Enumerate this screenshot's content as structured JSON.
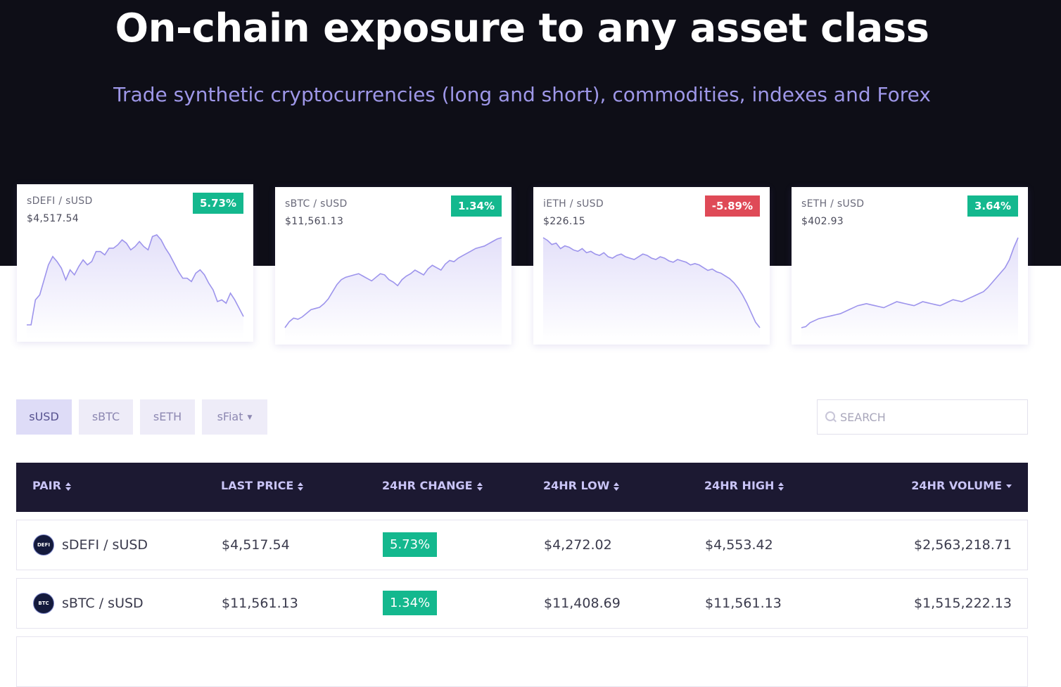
{
  "hero": {
    "title": "On-chain exposure to any asset class",
    "subtitle": "Trade synthetic cryptocurrencies (long and short), commodities, indexes and Forex"
  },
  "colors": {
    "hero_bg": "#0e0e17",
    "accent": "#9e97e8",
    "positive": "#14b88e",
    "negative": "#df4a57",
    "table_header_bg": "#1c1932"
  },
  "cards": [
    {
      "pair": "sDEFI / sUSD",
      "price": "$4,517.54",
      "change": "5.73%",
      "trend": "positive",
      "series": [
        0,
        0,
        15,
        18,
        27,
        36,
        41,
        38,
        34,
        27,
        33,
        30,
        35,
        39,
        36,
        38,
        44,
        44,
        42,
        46,
        46,
        48,
        51,
        49,
        45,
        47,
        50,
        47,
        45,
        53,
        54,
        51,
        46,
        42,
        37,
        32,
        28,
        28,
        26,
        31,
        33,
        30,
        25,
        21,
        14,
        15,
        13,
        19,
        15,
        10,
        5
      ]
    },
    {
      "pair": "sBTC / sUSD",
      "price": "$11,561.13",
      "change": "1.34%",
      "trend": "positive",
      "series": [
        0,
        5,
        8,
        7,
        9,
        12,
        15,
        16,
        17,
        20,
        24,
        30,
        36,
        40,
        42,
        43,
        44,
        45,
        43,
        41,
        39,
        42,
        45,
        44,
        40,
        38,
        35,
        40,
        43,
        45,
        48,
        46,
        44,
        49,
        52,
        50,
        48,
        53,
        56,
        55,
        58,
        60,
        62,
        64,
        66,
        67,
        68,
        70,
        72,
        74,
        75
      ]
    },
    {
      "pair": "iETH / sUSD",
      "price": "$226.15",
      "change": "-5.89%",
      "trend": "negative",
      "series": [
        70,
        68,
        65,
        66,
        62,
        64,
        63,
        61,
        60,
        62,
        59,
        60,
        58,
        57,
        59,
        56,
        55,
        57,
        58,
        56,
        55,
        54,
        56,
        58,
        57,
        55,
        54,
        56,
        55,
        53,
        52,
        54,
        53,
        52,
        50,
        51,
        50,
        48,
        46,
        47,
        45,
        44,
        42,
        40,
        37,
        33,
        28,
        22,
        15,
        8,
        4
      ]
    },
    {
      "pair": "sETH / sUSD",
      "price": "$402.93",
      "change": "3.64%",
      "trend": "positive",
      "series": [
        0,
        1,
        5,
        7,
        9,
        10,
        11,
        12,
        13,
        14,
        16,
        18,
        20,
        22,
        23,
        24,
        23,
        22,
        21,
        20,
        22,
        24,
        26,
        25,
        24,
        23,
        22,
        24,
        26,
        25,
        24,
        23,
        22,
        24,
        26,
        28,
        27,
        26,
        28,
        30,
        32,
        34,
        36,
        40,
        45,
        50,
        55,
        60,
        68,
        80,
        90
      ]
    }
  ],
  "filters": [
    {
      "label": "sUSD",
      "active": true
    },
    {
      "label": "sBTC",
      "active": false
    },
    {
      "label": "sETH",
      "active": false
    },
    {
      "label": "sFiat",
      "active": false,
      "dropdown": true
    }
  ],
  "search": {
    "placeholder": "SEARCH",
    "value": ""
  },
  "table": {
    "columns": [
      "PAIR",
      "LAST PRICE",
      "24HR CHANGE",
      "24HR LOW",
      "24HR HIGH",
      "24HR VOLUME"
    ],
    "sort_column": "24HR VOLUME",
    "rows": [
      {
        "icon_text": "DEFI",
        "pair": "sDEFI / sUSD",
        "last_price": "$4,517.54",
        "change": "5.73%",
        "low": "$4,272.02",
        "high": "$4,553.42",
        "volume": "$2,563,218.71"
      },
      {
        "icon_text": "BTC",
        "pair": "sBTC / sUSD",
        "last_price": "$11,561.13",
        "change": "1.34%",
        "low": "$11,408.69",
        "high": "$11,561.13",
        "volume": "$1,515,222.13"
      }
    ]
  }
}
